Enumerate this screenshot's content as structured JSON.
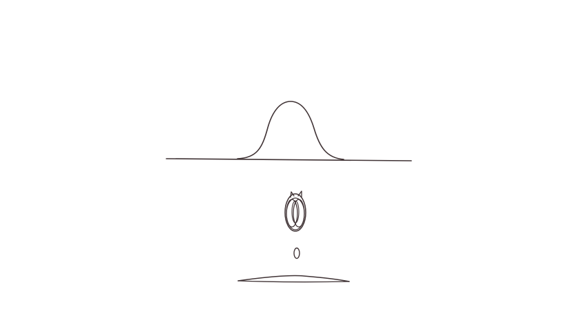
{
  "diagram": {
    "stroke_color": "#3f3234",
    "background": "#ffffff",
    "figures": [
      "bell-curve-on-baseline",
      "overlapping-loops-figure",
      "small-ellipse",
      "flat-lens-shape"
    ]
  }
}
